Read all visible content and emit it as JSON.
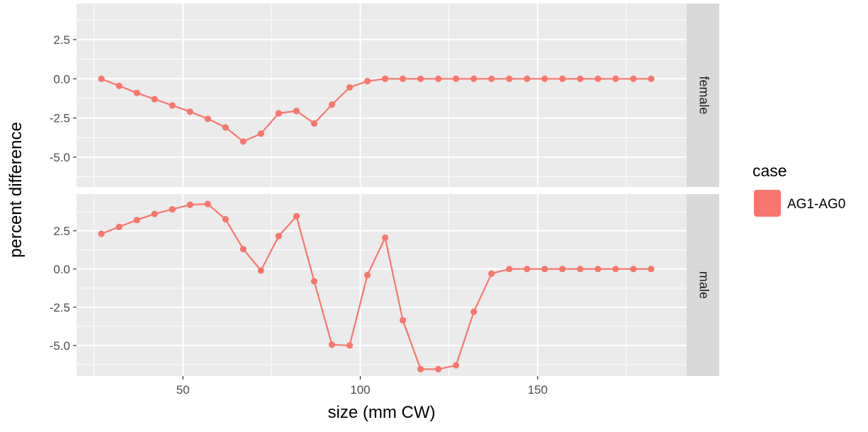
{
  "chart_data": {
    "type": "line",
    "xlabel": "size (mm CW)",
    "ylabel": "percent difference",
    "xlim": [
      20,
      192
    ],
    "x_ticks": [
      50,
      100,
      150
    ],
    "y_ticks": [
      -5.0,
      -2.5,
      0.0,
      2.5
    ],
    "y_tick_labels": [
      "-5.0",
      "-2.5",
      "0.0",
      "2.5"
    ],
    "x_tick_labels": [
      "50",
      "100",
      "150"
    ],
    "grid": true,
    "legend": {
      "title": "case",
      "position": "right",
      "entries": [
        {
          "label": "AG1-AG0",
          "color": "#F8766D"
        }
      ]
    },
    "line_color": "#F8766D",
    "x": [
      27,
      32,
      37,
      42,
      47,
      52,
      57,
      62,
      67,
      72,
      77,
      82,
      87,
      92,
      97,
      102,
      107,
      112,
      117,
      122,
      127,
      132,
      137,
      142,
      147,
      152,
      157,
      162,
      167,
      172,
      177,
      182
    ],
    "facets": [
      {
        "label": "female",
        "ylim": [
          -6.9,
          4.8
        ],
        "values": [
          0.0,
          -0.45,
          -0.9,
          -1.3,
          -1.7,
          -2.1,
          -2.55,
          -3.1,
          -4.0,
          -3.5,
          -2.2,
          -2.05,
          -2.85,
          -1.65,
          -0.55,
          -0.15,
          0.0,
          0.0,
          0.0,
          0.0,
          0.0,
          0.0,
          0.0,
          0.0,
          0.0,
          0.0,
          0.0,
          0.0,
          0.0,
          0.0,
          0.0,
          0.0
        ]
      },
      {
        "label": "male",
        "ylim": [
          -7.0,
          4.9
        ],
        "values": [
          2.3,
          2.75,
          3.2,
          3.6,
          3.9,
          4.2,
          4.25,
          3.25,
          1.3,
          -0.1,
          2.15,
          3.45,
          -0.8,
          -4.95,
          -5.0,
          -0.4,
          2.05,
          -3.35,
          -6.55,
          -6.55,
          -6.3,
          -2.8,
          -0.3,
          0.0,
          0.0,
          0.0,
          0.0,
          0.0,
          0.0,
          0.0,
          0.0,
          0.0
        ]
      }
    ]
  }
}
